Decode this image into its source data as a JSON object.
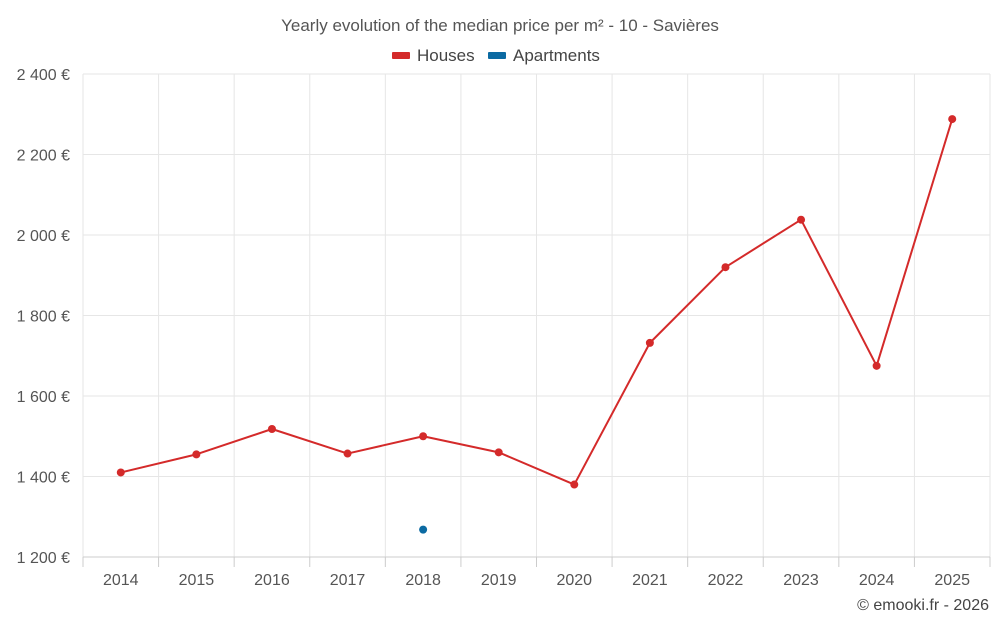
{
  "chart_data": {
    "type": "line",
    "title": "Yearly evolution of the median price per m² - 10 - Savières",
    "categories": [
      "2014",
      "2015",
      "2016",
      "2017",
      "2018",
      "2019",
      "2020",
      "2021",
      "2022",
      "2023",
      "2024",
      "2025"
    ],
    "series": [
      {
        "name": "Houses",
        "color": "#d42a2a",
        "values": [
          1410,
          1455,
          1518,
          1457,
          1500,
          1460,
          1380,
          1732,
          1920,
          2038,
          1675,
          2288
        ]
      },
      {
        "name": "Apartments",
        "color": "#0b6aa2",
        "values": [
          null,
          null,
          null,
          null,
          1268,
          null,
          null,
          null,
          null,
          null,
          null,
          null
        ]
      }
    ],
    "yticks": [
      1200,
      1400,
      1600,
      1800,
      2000,
      2200,
      2400
    ],
    "ytick_labels": [
      "1 200 €",
      "1 400 €",
      "1 600 €",
      "1 800 €",
      "2 000 €",
      "2 200 €",
      "2 400 €"
    ],
    "ylim": [
      1200,
      2400
    ],
    "xlabel": "",
    "ylabel": "",
    "grid": true,
    "legend_position": "top-center"
  },
  "credit": "© emooki.fr - 2026"
}
